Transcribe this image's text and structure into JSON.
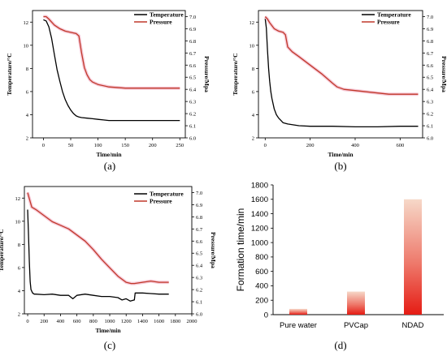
{
  "chart_data": [
    {
      "id": "a",
      "type": "line",
      "panel_label": "(a)",
      "xlabel": "Time/min",
      "ylabel": "Temperature/°C",
      "y2label": "Pressure/Mpa",
      "xlim": [
        -20,
        260
      ],
      "ylim": [
        2,
        13
      ],
      "y2lim": [
        6.0,
        7.05
      ],
      "xticks": [
        "0",
        "50",
        "100",
        "150",
        "200",
        "250"
      ],
      "yticks": [
        "2",
        "4",
        "6",
        "8",
        "10",
        "12"
      ],
      "y2ticks": [
        "6.0",
        "6.1",
        "6.2",
        "6.3",
        "6.4",
        "6.5",
        "6.6",
        "6.7",
        "6.8",
        "6.9",
        "7.0"
      ],
      "legend_position": "top-right",
      "series": [
        {
          "name": "Temperature",
          "axis": "left",
          "color": "#000000",
          "x": [
            0,
            5,
            10,
            15,
            20,
            25,
            30,
            35,
            40,
            45,
            50,
            55,
            60,
            65,
            70,
            80,
            90,
            100,
            110,
            120,
            140,
            160,
            180,
            200,
            220,
            240,
            250
          ],
          "y": [
            12.2,
            12.1,
            11.6,
            10.6,
            9.2,
            7.9,
            6.9,
            6.0,
            5.3,
            4.8,
            4.4,
            4.1,
            3.9,
            3.8,
            3.75,
            3.7,
            3.65,
            3.6,
            3.55,
            3.5,
            3.5,
            3.5,
            3.5,
            3.5,
            3.5,
            3.5,
            3.5
          ]
        },
        {
          "name": "Pressure",
          "axis": "right",
          "color": "#c0392b",
          "x": [
            0,
            5,
            10,
            20,
            30,
            40,
            50,
            60,
            65,
            70,
            75,
            80,
            85,
            90,
            95,
            100,
            120,
            150,
            180,
            200,
            220,
            240,
            250
          ],
          "y": [
            7.0,
            7.0,
            6.98,
            6.93,
            6.9,
            6.88,
            6.87,
            6.86,
            6.84,
            6.7,
            6.58,
            6.52,
            6.48,
            6.46,
            6.45,
            6.44,
            6.42,
            6.41,
            6.41,
            6.41,
            6.41,
            6.41,
            6.41
          ]
        }
      ]
    },
    {
      "id": "b",
      "type": "line",
      "panel_label": "(b)",
      "xlabel": "Time/min",
      "ylabel": "Temperature/°C",
      "y2label": "Pressure/Mpa",
      "xlim": [
        -30,
        700
      ],
      "ylim": [
        2,
        13
      ],
      "y2lim": [
        6.0,
        7.05
      ],
      "xticks": [
        "0",
        "200",
        "400",
        "600"
      ],
      "yticks": [
        "2",
        "4",
        "6",
        "8",
        "10",
        "12"
      ],
      "y2ticks": [
        "6.0",
        "6.1",
        "6.2",
        "6.3",
        "6.4",
        "6.5",
        "6.6",
        "6.7",
        "6.8",
        "6.9",
        "7.0"
      ],
      "legend_position": "top-right",
      "series": [
        {
          "name": "Temperature",
          "axis": "left",
          "color": "#000000",
          "x": [
            0,
            5,
            10,
            15,
            20,
            25,
            30,
            40,
            50,
            60,
            70,
            80,
            100,
            150,
            200,
            300,
            400,
            500,
            600,
            680
          ],
          "y": [
            12.3,
            11.5,
            9.6,
            8.0,
            6.9,
            6.0,
            5.4,
            4.5,
            4.0,
            3.7,
            3.5,
            3.3,
            3.2,
            3.05,
            3.0,
            3.0,
            2.95,
            2.95,
            3.0,
            3.0
          ]
        },
        {
          "name": "Pressure",
          "axis": "right",
          "color": "#c0392b",
          "x": [
            0,
            10,
            20,
            40,
            60,
            80,
            90,
            100,
            120,
            150,
            200,
            250,
            300,
            320,
            350,
            400,
            450,
            500,
            550,
            600,
            650,
            680
          ],
          "y": [
            7.0,
            6.98,
            6.95,
            6.9,
            6.88,
            6.87,
            6.85,
            6.75,
            6.71,
            6.67,
            6.6,
            6.53,
            6.45,
            6.42,
            6.4,
            6.39,
            6.38,
            6.37,
            6.36,
            6.36,
            6.36,
            6.36
          ]
        }
      ]
    },
    {
      "id": "c",
      "type": "line",
      "panel_label": "(c)",
      "xlabel": "Time/min",
      "ylabel": "Temperature/°C",
      "y2label": "Pressure/Mpa",
      "xlim": [
        -40,
        2000
      ],
      "ylim": [
        2,
        13
      ],
      "y2lim": [
        6.0,
        7.05
      ],
      "xticks": [
        "0",
        "200",
        "400",
        "600",
        "800",
        "1000",
        "1200",
        "1400",
        "1600",
        "1800",
        "2000"
      ],
      "yticks": [
        "2",
        "4",
        "6",
        "8",
        "10",
        "12"
      ],
      "y2ticks": [
        "6.0",
        "6.1",
        "6.2",
        "6.3",
        "6.4",
        "6.5",
        "6.6",
        "6.7",
        "6.8",
        "6.9",
        "7.0"
      ],
      "legend_position": "top-right",
      "series": [
        {
          "name": "Temperature",
          "axis": "left",
          "color": "#000000",
          "x": [
            0,
            10,
            20,
            30,
            40,
            60,
            80,
            100,
            200,
            300,
            400,
            500,
            550,
            600,
            700,
            800,
            900,
            1000,
            1100,
            1150,
            1200,
            1250,
            1300,
            1310,
            1400,
            1500,
            1600,
            1700,
            1720
          ],
          "y": [
            11.0,
            9.0,
            6.5,
            4.8,
            4.1,
            3.8,
            3.7,
            3.7,
            3.65,
            3.7,
            3.6,
            3.6,
            3.3,
            3.6,
            3.7,
            3.6,
            3.5,
            3.5,
            3.4,
            3.2,
            3.3,
            3.1,
            3.2,
            3.8,
            3.8,
            3.75,
            3.7,
            3.7,
            3.7
          ]
        },
        {
          "name": "Pressure",
          "axis": "right",
          "color": "#c0392b",
          "x": [
            0,
            20,
            50,
            100,
            200,
            300,
            400,
            500,
            600,
            700,
            800,
            900,
            1000,
            1100,
            1200,
            1260,
            1300,
            1400,
            1500,
            1600,
            1700,
            1720
          ],
          "y": [
            7.0,
            6.95,
            6.88,
            6.86,
            6.81,
            6.76,
            6.73,
            6.7,
            6.65,
            6.6,
            6.53,
            6.45,
            6.38,
            6.31,
            6.26,
            6.25,
            6.25,
            6.26,
            6.27,
            6.26,
            6.26,
            6.26
          ]
        }
      ]
    },
    {
      "id": "d",
      "type": "bar",
      "panel_label": "(d)",
      "ylabel": "Formation time/min",
      "xlabel": "",
      "ylim": [
        0,
        1800
      ],
      "yticks": [
        "0",
        "200",
        "400",
        "600",
        "800",
        "1000",
        "1200",
        "1400",
        "1600",
        "1800"
      ],
      "categories": [
        "Pure water",
        "PVCap",
        "NDAD"
      ],
      "values": [
        80,
        320,
        1600
      ],
      "color": "#e8201a"
    }
  ]
}
